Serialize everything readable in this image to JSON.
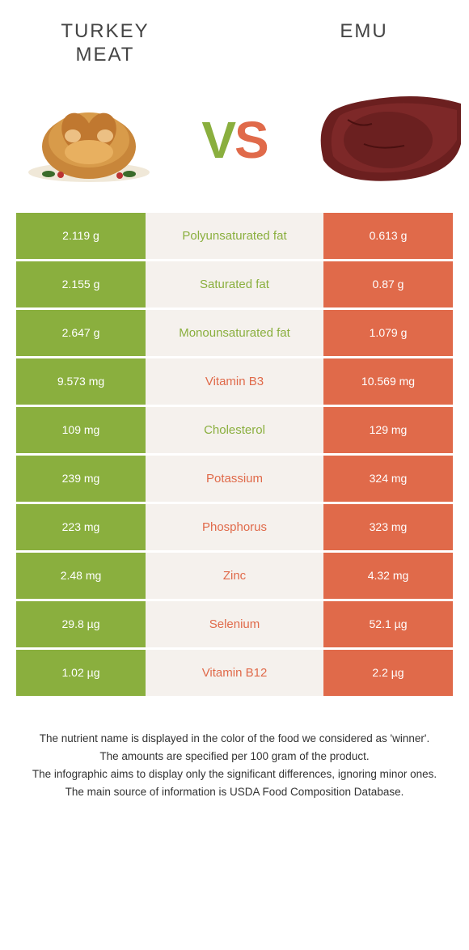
{
  "colors": {
    "green": "#8aaf3e",
    "orange": "#e06a4a",
    "mid_bg": "#f5f1ed",
    "text": "#333333"
  },
  "header": {
    "left_title": "Turkey meat",
    "right_title": "Emu",
    "vs_v": "V",
    "vs_s": "S"
  },
  "rows": [
    {
      "left": "2.119 g",
      "label": "Polyunsaturated fat",
      "right": "0.613 g",
      "winner": "left"
    },
    {
      "left": "2.155 g",
      "label": "Saturated fat",
      "right": "0.87 g",
      "winner": "left"
    },
    {
      "left": "2.647 g",
      "label": "Monounsaturated fat",
      "right": "1.079 g",
      "winner": "left"
    },
    {
      "left": "9.573 mg",
      "label": "Vitamin B3",
      "right": "10.569 mg",
      "winner": "right"
    },
    {
      "left": "109 mg",
      "label": "Cholesterol",
      "right": "129 mg",
      "winner": "left"
    },
    {
      "left": "239 mg",
      "label": "Potassium",
      "right": "324 mg",
      "winner": "right"
    },
    {
      "left": "223 mg",
      "label": "Phosphorus",
      "right": "323 mg",
      "winner": "right"
    },
    {
      "left": "2.48 mg",
      "label": "Zinc",
      "right": "4.32 mg",
      "winner": "right"
    },
    {
      "left": "29.8 µg",
      "label": "Selenium",
      "right": "52.1 µg",
      "winner": "right"
    },
    {
      "left": "1.02 µg",
      "label": "Vitamin B12",
      "right": "2.2 µg",
      "winner": "right"
    }
  ],
  "footer": {
    "line1": "The nutrient name is displayed in the color of the food we considered as 'winner'.",
    "line2": "The amounts are specified per 100 gram of the product.",
    "line3": "The infographic aims to display only the significant differences, ignoring minor ones.",
    "line4": "The main source of information is USDA Food Composition Database."
  }
}
